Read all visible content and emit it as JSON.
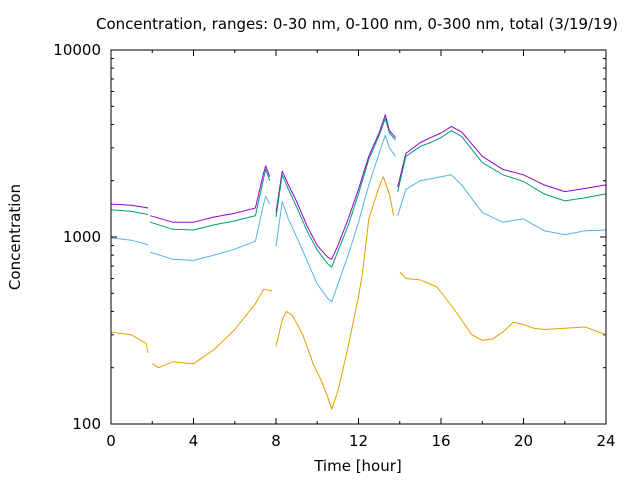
{
  "chart_data": {
    "type": "line",
    "title": "Concentration, ranges: 0-30 nm, 0-100 nm, 0-300 nm, total (3/19/19)",
    "xlabel": "Time [hour]",
    "ylabel": "Concentration",
    "xlim": [
      0,
      24
    ],
    "ylim": [
      100,
      10000
    ],
    "yscale": "log",
    "grid": false,
    "legend": "none",
    "x_ticks": [
      "0",
      "4",
      "8",
      "12",
      "16",
      "20",
      "24"
    ],
    "y_ticks": [
      "100",
      "1000",
      "10000"
    ],
    "series": [
      {
        "color": "#9400d3",
        "segments": [
          [
            [
              0,
              1500
            ],
            [
              1,
              1480
            ],
            [
              1.8,
              1430
            ]
          ],
          [
            [
              1.9,
              1300
            ],
            [
              3,
              1200
            ],
            [
              4,
              1200
            ],
            [
              5,
              1280
            ],
            [
              6,
              1340
            ],
            [
              7,
              1430
            ],
            [
              7.4,
              2200
            ],
            [
              7.5,
              2400
            ],
            [
              7.7,
              2100
            ]
          ],
          [
            [
              8,
              1350
            ],
            [
              8.3,
              2250
            ],
            [
              8.6,
              1900
            ],
            [
              9,
              1550
            ],
            [
              9.5,
              1150
            ],
            [
              10,
              900
            ],
            [
              10.5,
              780
            ],
            [
              10.7,
              760
            ],
            [
              11,
              900
            ],
            [
              11.5,
              1250
            ],
            [
              12,
              1800
            ],
            [
              12.5,
              2700
            ],
            [
              13,
              3600
            ],
            [
              13.3,
              4500
            ],
            [
              13.5,
              3700
            ],
            [
              13.8,
              3400
            ]
          ],
          [
            [
              13.9,
              1850
            ],
            [
              14.3,
              2800
            ],
            [
              15,
              3200
            ],
            [
              15.5,
              3400
            ],
            [
              16,
              3600
            ],
            [
              16.5,
              3900
            ],
            [
              17,
              3650
            ],
            [
              18,
              2700
            ],
            [
              19,
              2300
            ],
            [
              20,
              2150
            ],
            [
              21,
              1900
            ],
            [
              22,
              1750
            ],
            [
              23,
              1820
            ],
            [
              24,
              1900
            ]
          ]
        ]
      },
      {
        "color": "#009e73",
        "segments": [
          [
            [
              0,
              1400
            ],
            [
              1,
              1370
            ],
            [
              1.8,
              1320
            ]
          ],
          [
            [
              1.9,
              1200
            ],
            [
              3,
              1100
            ],
            [
              4,
              1090
            ],
            [
              5,
              1160
            ],
            [
              6,
              1220
            ],
            [
              7,
              1300
            ],
            [
              7.4,
              2050
            ],
            [
              7.5,
              2300
            ],
            [
              7.7,
              2000
            ]
          ],
          [
            [
              8,
              1280
            ],
            [
              8.3,
              2150
            ],
            [
              8.6,
              1800
            ],
            [
              9,
              1450
            ],
            [
              9.5,
              1080
            ],
            [
              10,
              850
            ],
            [
              10.5,
              720
            ],
            [
              10.7,
              690
            ],
            [
              11,
              840
            ],
            [
              11.5,
              1150
            ],
            [
              12,
              1700
            ],
            [
              12.5,
              2600
            ],
            [
              13,
              3500
            ],
            [
              13.3,
              4300
            ],
            [
              13.5,
              3600
            ],
            [
              13.8,
              3300
            ]
          ],
          [
            [
              13.9,
              1750
            ],
            [
              14.3,
              2700
            ],
            [
              15,
              3050
            ],
            [
              15.5,
              3200
            ],
            [
              16,
              3400
            ],
            [
              16.5,
              3700
            ],
            [
              17,
              3450
            ],
            [
              18,
              2500
            ],
            [
              19,
              2150
            ],
            [
              20,
              1980
            ],
            [
              21,
              1700
            ],
            [
              22,
              1560
            ],
            [
              23,
              1620
            ],
            [
              24,
              1700
            ]
          ]
        ]
      },
      {
        "color": "#56b4e9",
        "segments": [
          [
            [
              0,
              990
            ],
            [
              1,
              960
            ],
            [
              1.8,
              910
            ]
          ],
          [
            [
              1.9,
              830
            ],
            [
              3,
              760
            ],
            [
              4,
              750
            ],
            [
              5,
              800
            ],
            [
              6,
              860
            ],
            [
              7,
              950
            ],
            [
              7.4,
              1500
            ],
            [
              7.5,
              1650
            ],
            [
              7.7,
              1500
            ]
          ],
          [
            [
              8,
              890
            ],
            [
              8.3,
              1550
            ],
            [
              8.6,
              1250
            ],
            [
              9,
              1000
            ],
            [
              9.5,
              750
            ],
            [
              10,
              560
            ],
            [
              10.5,
              470
            ],
            [
              10.7,
              450
            ],
            [
              11,
              560
            ],
            [
              11.5,
              800
            ],
            [
              12,
              1200
            ],
            [
              12.5,
              1900
            ],
            [
              13,
              2800
            ],
            [
              13.3,
              3500
            ],
            [
              13.5,
              3000
            ],
            [
              13.8,
              2700
            ]
          ],
          [
            [
              13.9,
              1300
            ],
            [
              14.3,
              1800
            ],
            [
              15,
              2000
            ],
            [
              15.5,
              2050
            ],
            [
              16,
              2100
            ],
            [
              16.5,
              2150
            ],
            [
              17,
              1900
            ],
            [
              18,
              1350
            ],
            [
              19,
              1200
            ],
            [
              20,
              1250
            ],
            [
              21,
              1080
            ],
            [
              22,
              1030
            ],
            [
              23,
              1080
            ],
            [
              24,
              1090
            ]
          ]
        ]
      },
      {
        "color": "#e69f00",
        "segments": [
          [
            [
              0,
              310
            ],
            [
              1,
              300
            ],
            [
              1.7,
              270
            ],
            [
              1.8,
              240
            ]
          ],
          [
            [
              2,
              210
            ],
            [
              2.3,
              200
            ],
            [
              3,
              215
            ],
            [
              4,
              210
            ],
            [
              5,
              250
            ],
            [
              6,
              320
            ],
            [
              7,
              440
            ],
            [
              7.4,
              525
            ],
            [
              7.8,
              515
            ]
          ],
          [
            [
              8,
              260
            ],
            [
              8.3,
              360
            ],
            [
              8.5,
              400
            ],
            [
              8.8,
              380
            ],
            [
              9.3,
              300
            ],
            [
              9.8,
              210
            ],
            [
              10.2,
              170
            ],
            [
              10.5,
              140
            ],
            [
              10.7,
              120
            ],
            [
              11,
              150
            ],
            [
              11.5,
              260
            ],
            [
              12,
              480
            ],
            [
              12.2,
              650
            ],
            [
              12.5,
              1250
            ],
            [
              13,
              1850
            ],
            [
              13.2,
              2100
            ],
            [
              13.5,
              1700
            ],
            [
              13.7,
              1300
            ]
          ],
          [
            [
              14,
              650
            ],
            [
              14.3,
              600
            ],
            [
              15,
              590
            ],
            [
              15.8,
              540
            ],
            [
              16.5,
              430
            ],
            [
              17,
              360
            ],
            [
              17.5,
              300
            ],
            [
              18,
              280
            ],
            [
              18.5,
              285
            ],
            [
              19,
              310
            ],
            [
              19.5,
              350
            ],
            [
              20,
              340
            ],
            [
              20.5,
              325
            ],
            [
              21,
              320
            ],
            [
              22,
              325
            ],
            [
              23,
              330
            ],
            [
              24,
              300
            ]
          ]
        ]
      }
    ]
  }
}
